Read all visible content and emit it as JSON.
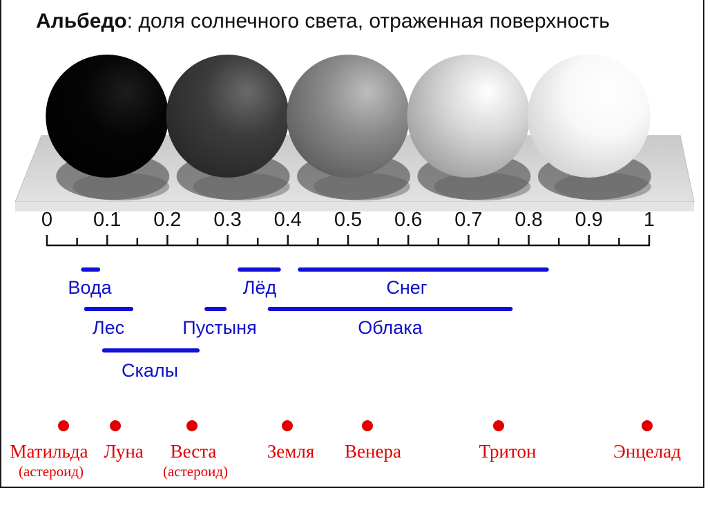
{
  "title": {
    "bold": "Альбедо",
    "rest": ": доля солнечного света, отраженная поверхность"
  },
  "scale": {
    "min": 0,
    "max": 1,
    "tick_labels": [
      "0",
      "0.1",
      "0.2",
      "0.3",
      "0.4",
      "0.5",
      "0.6",
      "0.7",
      "0.8",
      "0.9",
      "1"
    ],
    "minor_step": 0.05
  },
  "spheres": [
    {
      "albedo": 0.1,
      "color": "#050505"
    },
    {
      "albedo": 0.3,
      "color": "#3c3c3c"
    },
    {
      "albedo": 0.5,
      "color": "#8a8a8a"
    },
    {
      "albedo": 0.7,
      "color": "#d6d6d6"
    },
    {
      "albedo": 0.9,
      "color": "#f8f8f8"
    }
  ],
  "materials": [
    {
      "label": "Вода",
      "from": 0.06,
      "to": 0.085,
      "row": 1
    },
    {
      "label": "Лёд",
      "from": 0.32,
      "to": 0.385,
      "row": 1
    },
    {
      "label": "Снег",
      "from": 0.42,
      "to": 0.83,
      "row": 1
    },
    {
      "label": "Лес",
      "from": 0.065,
      "to": 0.14,
      "row": 2
    },
    {
      "label": "Пустыня",
      "from": 0.265,
      "to": 0.295,
      "row": 2
    },
    {
      "label": "Облака",
      "from": 0.37,
      "to": 0.77,
      "row": 2
    },
    {
      "label": "Скалы",
      "from": 0.095,
      "to": 0.25,
      "row": 3
    }
  ],
  "bodies": [
    {
      "name": "Матильда",
      "note": "(астероид)",
      "albedo": 0.03
    },
    {
      "name": "Луна",
      "note": "",
      "albedo": 0.11
    },
    {
      "name": "Веста",
      "note": "(астероид)",
      "albedo": 0.24
    },
    {
      "name": "Земля",
      "note": "",
      "albedo": 0.4
    },
    {
      "name": "Венера",
      "note": "",
      "albedo": 0.535
    },
    {
      "name": "Тритон",
      "note": "",
      "albedo": 0.755
    },
    {
      "name": "Энцелад",
      "note": "",
      "albedo": 1.0
    }
  ],
  "colors": {
    "material_bar": "#1010d8",
    "material_text": "#1010c8",
    "body": "#e00000",
    "axis": "#111111"
  }
}
